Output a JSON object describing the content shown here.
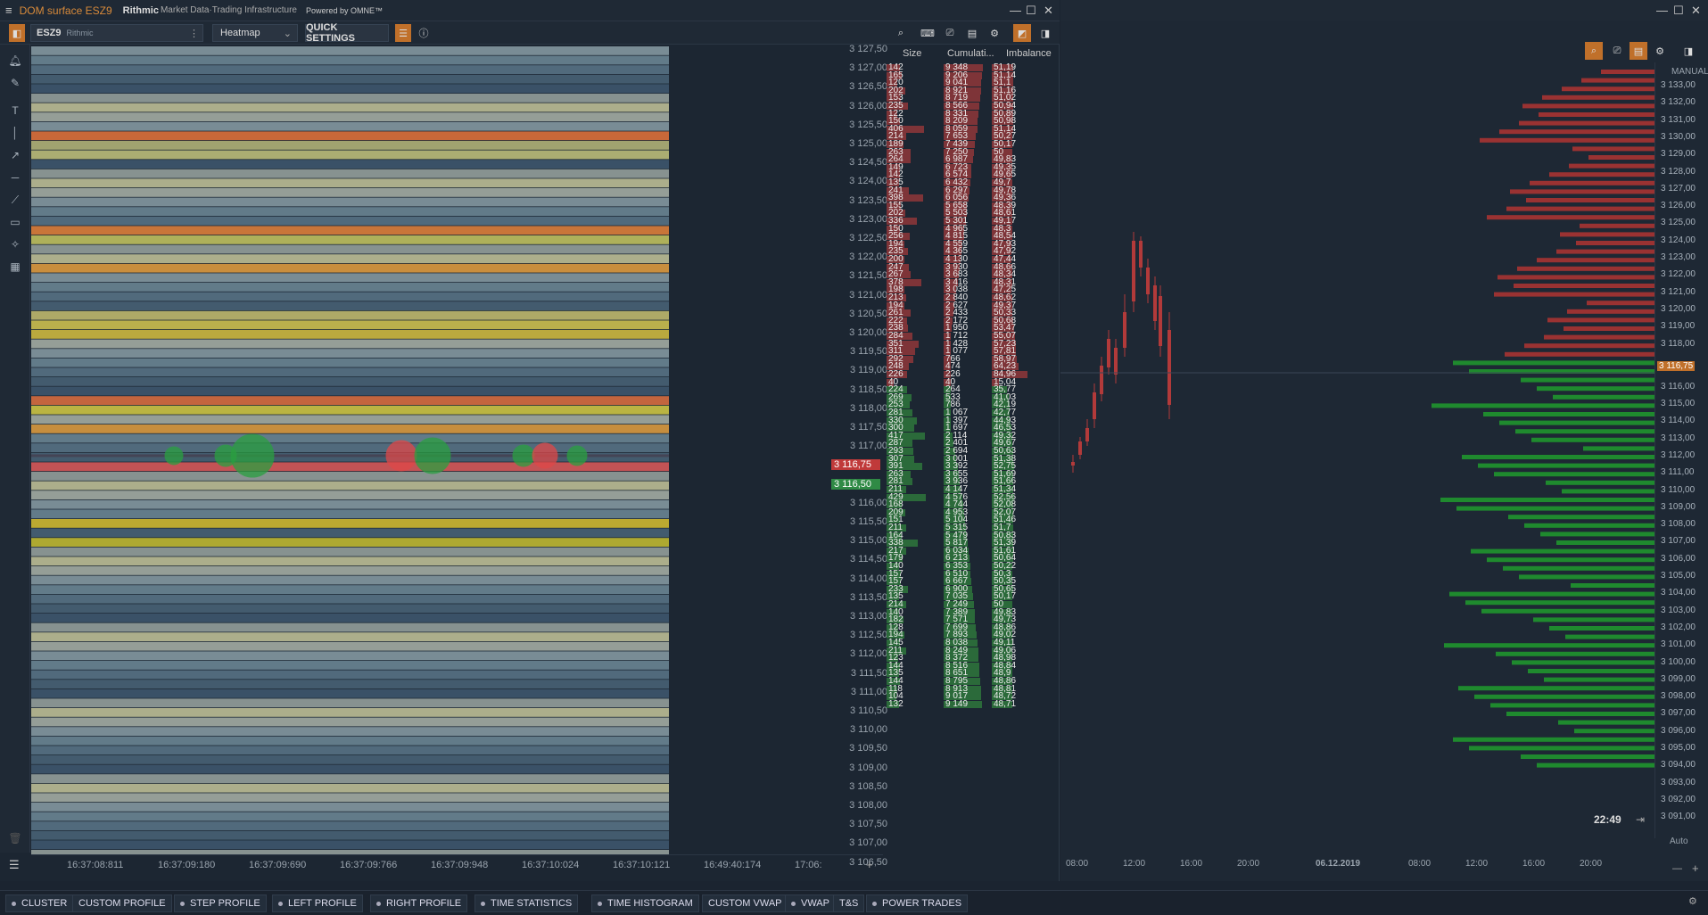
{
  "dom_window": {
    "title": "DOM surface ESZ9",
    "rithmic": "Rithmic",
    "rithmic_sub": "Market Data·Trading Infrastructure",
    "omne": "Powered by OMNE™",
    "instrument": "ESZ9",
    "connection": "Rithmic",
    "mode": "Heatmap",
    "quick_settings": "QUICK SETTINGS",
    "columns": [
      "Size",
      "Cumulati...",
      "Imbalance"
    ],
    "time_labels": [
      "16:37:08:811",
      "16:37:09:180",
      "16:37:09:690",
      "16:37:09:766",
      "16:37:09:948",
      "16:37:10:024",
      "16:37:10:121",
      "16:49:40:174",
      "17:06:"
    ],
    "prices": [
      "3 127,50",
      "3 127,00",
      "3 126,50",
      "3 126,00",
      "3 125,50",
      "3 125,00",
      "3 124,50",
      "3 124,00",
      "3 123,50",
      "3 123,00",
      "3 122,50",
      "3 122,00",
      "3 121,50",
      "3 121,00",
      "3 120,50",
      "3 120,00",
      "3 119,50",
      "3 119,00",
      "3 118,50",
      "3 118,00",
      "3 117,50",
      "3 117,00",
      "3 116,75",
      "3 116,50",
      "3 116,00",
      "3 115,50",
      "3 115,00",
      "3 114,50",
      "3 114,00",
      "3 113,50",
      "3 113,00",
      "3 112,50",
      "3 112,00",
      "3 111,50",
      "3 111,00",
      "3 110,50",
      "3 110,00",
      "3 109,50",
      "3 109,00",
      "3 108,50",
      "3 108,00",
      "3 107,50",
      "3 107,00",
      "3 106,50"
    ],
    "ask_price": "3 116,75",
    "bid_price": "3 116,50",
    "asks": [
      [
        "142",
        "9 348",
        "51,19"
      ],
      [
        "165",
        "9 206",
        "51,14"
      ],
      [
        "120",
        "9 041",
        "51,1"
      ],
      [
        "202",
        "8 921",
        "51,16"
      ],
      [
        "153",
        "8 719",
        "51,02"
      ],
      [
        "235",
        "8 566",
        "50,94"
      ],
      [
        "122",
        "8 331",
        "50,89"
      ],
      [
        "150",
        "8 209",
        "50,98"
      ],
      [
        "406",
        "8 059",
        "51,14"
      ],
      [
        "214",
        "7 653",
        "50,27"
      ],
      [
        "189",
        "7 439",
        "50,17"
      ],
      [
        "263",
        "7 250",
        "50"
      ],
      [
        "264",
        "6 987",
        "49,83"
      ],
      [
        "149",
        "6 723",
        "49,35"
      ],
      [
        "142",
        "6 574",
        "49,65"
      ],
      [
        "135",
        "6 432",
        "49,7"
      ],
      [
        "241",
        "6 297",
        "49,78"
      ],
      [
        "398",
        "6 056",
        "49,36"
      ],
      [
        "155",
        "5 658",
        "48,39"
      ],
      [
        "202",
        "5 503",
        "48,61"
      ],
      [
        "336",
        "5 301",
        "49,17"
      ],
      [
        "150",
        "4 965",
        "48,3"
      ],
      [
        "256",
        "4 815",
        "48,54"
      ],
      [
        "194",
        "4 559",
        "47,93"
      ],
      [
        "235",
        "4 365",
        "47,92"
      ],
      [
        "200",
        "4 130",
        "47,44"
      ],
      [
        "247",
        "3 930",
        "48,66"
      ],
      [
        "267",
        "3 683",
        "48,34"
      ],
      [
        "378",
        "3 416",
        "48,31"
      ],
      [
        "198",
        "3 038",
        "47,25"
      ],
      [
        "213",
        "2 840",
        "48,62"
      ],
      [
        "194",
        "2 627",
        "49,37"
      ],
      [
        "261",
        "2 433",
        "50,33"
      ],
      [
        "222",
        "2 172",
        "50,68"
      ],
      [
        "238",
        "1 950",
        "53,47"
      ],
      [
        "284",
        "1 712",
        "55,07"
      ],
      [
        "351",
        "1 428",
        "57,23"
      ],
      [
        "311",
        "1 077",
        "57,81"
      ],
      [
        "292",
        "766",
        "58,97"
      ],
      [
        "248",
        "474",
        "64,23"
      ],
      [
        "226",
        "226",
        "84,96"
      ]
    ],
    "inside": [
      [
        "40",
        "40",
        "15,04"
      ],
      [
        "224",
        "264",
        "35,77"
      ]
    ],
    "bids": [
      [
        "269",
        "533",
        "41,03"
      ],
      [
        "253",
        "786",
        "42,19"
      ],
      [
        "281",
        "1 067",
        "42,77"
      ],
      [
        "330",
        "1 397",
        "44,93"
      ],
      [
        "300",
        "1 697",
        "46,53"
      ],
      [
        "417",
        "2 114",
        "49,32"
      ],
      [
        "287",
        "2 401",
        "49,67"
      ],
      [
        "293",
        "2 694",
        "50,63"
      ],
      [
        "307",
        "3 001",
        "51,38"
      ],
      [
        "391",
        "3 392",
        "52,75"
      ],
      [
        "263",
        "3 655",
        "51,69"
      ],
      [
        "281",
        "3 936",
        "51,66"
      ],
      [
        "211",
        "4 147",
        "51,34"
      ],
      [
        "429",
        "4 576",
        "52,56"
      ],
      [
        "168",
        "4 744",
        "52,08"
      ],
      [
        "209",
        "4 953",
        "52,07"
      ],
      [
        "151",
        "5 104",
        "51,46"
      ],
      [
        "211",
        "5 315",
        "51,7"
      ],
      [
        "164",
        "5 479",
        "50,83"
      ],
      [
        "338",
        "5 817",
        "51,39"
      ],
      [
        "217",
        "6 034",
        "51,61"
      ],
      [
        "179",
        "6 213",
        "50,64"
      ],
      [
        "140",
        "6 353",
        "50,22"
      ],
      [
        "157",
        "6 510",
        "50,3"
      ],
      [
        "157",
        "6 667",
        "50,35"
      ],
      [
        "233",
        "6 900",
        "50,65"
      ],
      [
        "135",
        "7 035",
        "50,17"
      ],
      [
        "214",
        "7 249",
        "50"
      ],
      [
        "140",
        "7 389",
        "49,83"
      ],
      [
        "182",
        "7 571",
        "49,73"
      ],
      [
        "128",
        "7 699",
        "48,86"
      ],
      [
        "194",
        "7 893",
        "49,02"
      ],
      [
        "145",
        "8 038",
        "49,11"
      ],
      [
        "211",
        "8 249",
        "49,06"
      ],
      [
        "123",
        "8 372",
        "48,98"
      ],
      [
        "144",
        "8 516",
        "48,84"
      ],
      [
        "135",
        "8 651",
        "48,9"
      ],
      [
        "144",
        "8 795",
        "48,86"
      ],
      [
        "118",
        "8 913",
        "48,81"
      ],
      [
        "104",
        "9 017",
        "48,72"
      ],
      [
        "132",
        "9 149",
        "48,71"
      ]
    ]
  },
  "chart_window": {
    "scale_mode": "MANUAL",
    "auto": "Auto",
    "last_price": "3 116,75",
    "clock": "22:49",
    "prices": [
      "3 133,00",
      "3 132,00",
      "3 131,00",
      "3 130,00",
      "3 129,00",
      "3 128,00",
      "3 127,00",
      "3 126,00",
      "3 125,00",
      "3 124,00",
      "3 123,00",
      "3 122,00",
      "3 121,00",
      "3 120,00",
      "3 119,00",
      "3 118,00",
      "3 116,00",
      "3 115,00",
      "3 114,00",
      "3 113,00",
      "3 112,00",
      "3 111,00",
      "3 110,00",
      "3 109,00",
      "3 108,00",
      "3 107,00",
      "3 106,00",
      "3 105,00",
      "3 104,00",
      "3 103,00",
      "3 102,00",
      "3 101,00",
      "3 100,00",
      "3 099,00",
      "3 098,00",
      "3 097,00",
      "3 096,00",
      "3 095,00",
      "3 094,00",
      "3 093,00",
      "3 092,00",
      "3 091,00"
    ],
    "time_labels": [
      "08:00",
      "12:00",
      "16:00",
      "20:00",
      "06.12.2019",
      "08:00",
      "12:00",
      "16:00",
      "20:00"
    ]
  },
  "bottom_bar": [
    "CLUSTER",
    "CUSTOM PROFILE",
    "STEP PROFILE",
    "LEFT PROFILE",
    "RIGHT PROFILE",
    "TIME STATISTICS",
    "TIME HISTOGRAM",
    "CUSTOM VWAP",
    "VWAP",
    "T&S",
    "POWER TRADES"
  ],
  "colors": {
    "ask": "#8a3a3e",
    "bid": "#2c6e3c",
    "accent": "#c0702a"
  }
}
